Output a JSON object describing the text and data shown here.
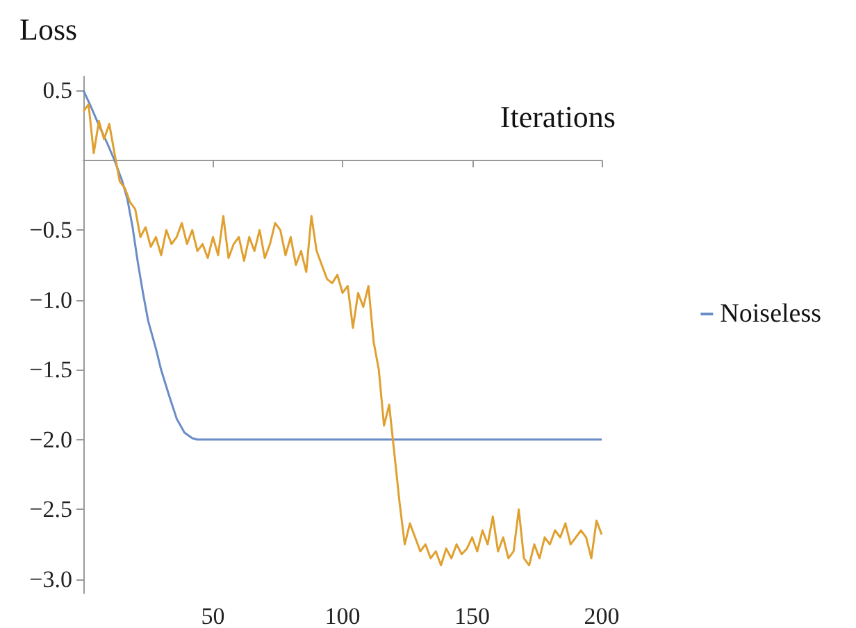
{
  "chart_data": {
    "type": "line",
    "xlabel": "Iterations",
    "ylabel": "Loss",
    "xlim": [
      0,
      200
    ],
    "ylim": [
      -3.1,
      0.6
    ],
    "xticks": [
      50,
      100,
      150,
      200
    ],
    "yticks": [
      {
        "value": 0.5,
        "label": "0.5"
      },
      {
        "value": -0.5,
        "label": "−0.5"
      },
      {
        "value": -1,
        "label": "−1.0"
      },
      {
        "value": -1.5,
        "label": "−1.5"
      },
      {
        "value": -2,
        "label": "−2.0"
      },
      {
        "value": -2.5,
        "label": "−2.5"
      },
      {
        "value": -3,
        "label": "−3.0"
      }
    ],
    "grid": false,
    "legend": "right",
    "marker": "none",
    "line_style": "solid",
    "series": [
      {
        "name": "Noiseless",
        "color": "#6a8cc7",
        "x": [
          0,
          3,
          6,
          9,
          12,
          15,
          17,
          19,
          21,
          23,
          25,
          28,
          30,
          33,
          36,
          39,
          42,
          44,
          47,
          50,
          60,
          80,
          100,
          120,
          140,
          160,
          180,
          200
        ],
        "values": [
          0.5,
          0.38,
          0.25,
          0.13,
          0,
          -0.15,
          -0.28,
          -0.48,
          -0.73,
          -0.95,
          -1.15,
          -1.35,
          -1.5,
          -1.68,
          -1.85,
          -1.95,
          -1.99,
          -2,
          -2,
          -2,
          -2,
          -2,
          -2,
          -2,
          -2,
          -2,
          -2,
          -2
        ]
      },
      {
        "color": "#e0a030",
        "x": [
          0,
          2,
          4,
          6,
          8,
          10,
          12,
          14,
          16,
          18,
          20,
          22,
          24,
          26,
          28,
          30,
          32,
          34,
          36,
          38,
          40,
          42,
          44,
          46,
          48,
          50,
          52,
          54,
          56,
          58,
          60,
          62,
          64,
          66,
          68,
          70,
          72,
          74,
          76,
          78,
          80,
          82,
          84,
          86,
          88,
          90,
          92,
          94,
          96,
          98,
          100,
          102,
          104,
          106,
          108,
          110,
          112,
          114,
          116,
          118,
          120,
          122,
          124,
          126,
          128,
          130,
          132,
          134,
          136,
          138,
          140,
          142,
          144,
          146,
          148,
          150,
          152,
          154,
          156,
          158,
          160,
          162,
          164,
          166,
          168,
          170,
          172,
          174,
          176,
          178,
          180,
          182,
          184,
          186,
          188,
          190,
          192,
          194,
          196,
          198,
          200
        ],
        "values": [
          0.35,
          0.4,
          0.05,
          0.28,
          0.15,
          0.26,
          0.05,
          -0.15,
          -0.2,
          -0.3,
          -0.35,
          -0.55,
          -0.48,
          -0.62,
          -0.55,
          -0.68,
          -0.5,
          -0.6,
          -0.55,
          -0.45,
          -0.6,
          -0.5,
          -0.65,
          -0.6,
          -0.7,
          -0.55,
          -0.68,
          -0.4,
          -0.7,
          -0.6,
          -0.55,
          -0.72,
          -0.55,
          -0.65,
          -0.5,
          -0.7,
          -0.6,
          -0.45,
          -0.5,
          -0.68,
          -0.55,
          -0.75,
          -0.65,
          -0.8,
          -0.4,
          -0.65,
          -0.75,
          -0.85,
          -0.88,
          -0.82,
          -0.95,
          -0.9,
          -1.2,
          -0.95,
          -1.05,
          -0.9,
          -1.3,
          -1.5,
          -1.9,
          -1.75,
          -2.1,
          -2.45,
          -2.75,
          -2.6,
          -2.7,
          -2.8,
          -2.75,
          -2.85,
          -2.8,
          -2.9,
          -2.78,
          -2.85,
          -2.75,
          -2.82,
          -2.78,
          -2.7,
          -2.8,
          -2.65,
          -2.75,
          -2.55,
          -2.8,
          -2.7,
          -2.85,
          -2.8,
          -2.5,
          -2.85,
          -2.9,
          -2.75,
          -2.85,
          -2.7,
          -2.75,
          -2.65,
          -2.7,
          -2.6,
          -2.75,
          -2.7,
          -2.65,
          -2.7,
          -2.85,
          -2.58,
          -2.68
        ]
      }
    ]
  }
}
